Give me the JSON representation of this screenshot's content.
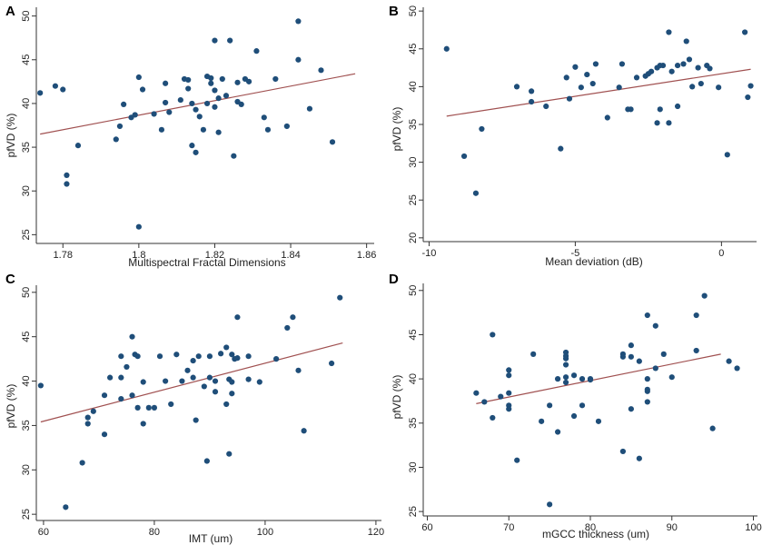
{
  "colors": {
    "point": "#1f4e79",
    "fit_line": "#a05050",
    "axis": "#333333"
  },
  "chart_data": [
    {
      "panel": "A",
      "type": "scatter",
      "xlabel": "Multispectral Fractal Dimensions",
      "ylabel": "pfVD (%)",
      "xlim": [
        1.773,
        1.862
      ],
      "ylim": [
        24,
        51
      ],
      "xticks": [
        "1.78",
        "1.8",
        "1.82",
        "1.84",
        "1.86"
      ],
      "xtick_values": [
        1.78,
        1.8,
        1.82,
        1.84,
        1.86
      ],
      "yticks": [
        "25",
        "30",
        "35",
        "40",
        "45",
        "50"
      ],
      "ytick_values": [
        25,
        30,
        35,
        40,
        45,
        50
      ],
      "fit_line": [
        [
          1.774,
          36.5
        ],
        [
          1.857,
          43.4
        ]
      ],
      "points": [
        [
          1.774,
          41.2
        ],
        [
          1.778,
          42.0
        ],
        [
          1.78,
          41.6
        ],
        [
          1.781,
          31.8
        ],
        [
          1.781,
          30.8
        ],
        [
          1.784,
          35.2
        ],
        [
          1.794,
          35.9
        ],
        [
          1.795,
          37.4
        ],
        [
          1.796,
          39.9
        ],
        [
          1.798,
          38.4
        ],
        [
          1.799,
          38.7
        ],
        [
          1.8,
          43.0
        ],
        [
          1.8,
          25.9
        ],
        [
          1.801,
          41.6
        ],
        [
          1.804,
          38.8
        ],
        [
          1.806,
          37.0
        ],
        [
          1.807,
          40.1
        ],
        [
          1.807,
          42.3
        ],
        [
          1.808,
          39.0
        ],
        [
          1.811,
          40.4
        ],
        [
          1.812,
          42.8
        ],
        [
          1.813,
          42.7
        ],
        [
          1.813,
          41.7
        ],
        [
          1.814,
          40.0
        ],
        [
          1.814,
          35.2
        ],
        [
          1.815,
          34.4
        ],
        [
          1.815,
          39.3
        ],
        [
          1.816,
          38.5
        ],
        [
          1.817,
          37.0
        ],
        [
          1.818,
          43.1
        ],
        [
          1.818,
          40.0
        ],
        [
          1.819,
          42.9
        ],
        [
          1.819,
          42.3
        ],
        [
          1.82,
          41.5
        ],
        [
          1.82,
          39.6
        ],
        [
          1.82,
          47.2
        ],
        [
          1.821,
          40.6
        ],
        [
          1.821,
          36.7
        ],
        [
          1.822,
          42.8
        ],
        [
          1.823,
          40.9
        ],
        [
          1.824,
          47.2
        ],
        [
          1.825,
          34.0
        ],
        [
          1.826,
          42.4
        ],
        [
          1.826,
          40.2
        ],
        [
          1.827,
          39.9
        ],
        [
          1.828,
          42.8
        ],
        [
          1.829,
          42.5
        ],
        [
          1.831,
          46.0
        ],
        [
          1.833,
          38.4
        ],
        [
          1.834,
          37.0
        ],
        [
          1.836,
          42.8
        ],
        [
          1.839,
          37.4
        ],
        [
          1.842,
          49.4
        ],
        [
          1.842,
          45.0
        ],
        [
          1.845,
          39.4
        ],
        [
          1.848,
          43.8
        ],
        [
          1.851,
          35.6
        ]
      ]
    },
    {
      "panel": "B",
      "type": "scatter",
      "xlabel": "Mean deviation (dB)",
      "ylabel": "pfVD (%)",
      "xlim": [
        -10.2,
        1.2
      ],
      "ylim": [
        19.5,
        50.5
      ],
      "xticks": [
        "-10",
        "-5",
        "0"
      ],
      "xtick_values": [
        -10,
        -5,
        0
      ],
      "yticks": [
        "20",
        "25",
        "30",
        "35",
        "40",
        "45",
        "50"
      ],
      "ytick_values": [
        20,
        25,
        30,
        35,
        40,
        45,
        50
      ],
      "fit_line": [
        [
          -9.4,
          36.1
        ],
        [
          1.0,
          42.3
        ]
      ],
      "points": [
        [
          -9.4,
          45.0
        ],
        [
          -8.8,
          30.8
        ],
        [
          -8.4,
          25.9
        ],
        [
          -8.2,
          34.4
        ],
        [
          -7.0,
          40.0
        ],
        [
          -6.5,
          38.0
        ],
        [
          -6.5,
          39.4
        ],
        [
          -6.0,
          37.4
        ],
        [
          -5.5,
          31.8
        ],
        [
          -5.3,
          41.2
        ],
        [
          -5.2,
          38.4
        ],
        [
          -5.0,
          42.6
        ],
        [
          -4.8,
          39.9
        ],
        [
          -4.6,
          41.6
        ],
        [
          -4.4,
          40.4
        ],
        [
          -4.3,
          43.0
        ],
        [
          -3.9,
          35.9
        ],
        [
          -3.5,
          39.9
        ],
        [
          -3.4,
          43.0
        ],
        [
          -3.2,
          37.0
        ],
        [
          -3.1,
          37.0
        ],
        [
          -2.9,
          41.2
        ],
        [
          -2.6,
          41.4
        ],
        [
          -2.5,
          41.7
        ],
        [
          -2.4,
          42.0
        ],
        [
          -2.2,
          42.5
        ],
        [
          -2.1,
          42.8
        ],
        [
          -2.0,
          42.8
        ],
        [
          -2.1,
          37.0
        ],
        [
          -2.2,
          35.2
        ],
        [
          -1.8,
          47.2
        ],
        [
          -1.8,
          35.2
        ],
        [
          -1.7,
          42.0
        ],
        [
          -1.5,
          37.4
        ],
        [
          -1.5,
          42.8
        ],
        [
          -1.3,
          43.0
        ],
        [
          -1.2,
          46.0
        ],
        [
          -1.1,
          43.6
        ],
        [
          -1.0,
          40.0
        ],
        [
          -0.8,
          42.5
        ],
        [
          -0.7,
          40.4
        ],
        [
          -0.5,
          42.8
        ],
        [
          -0.4,
          42.4
        ],
        [
          -0.1,
          39.9
        ],
        [
          0.2,
          31.0
        ],
        [
          0.8,
          47.2
        ],
        [
          0.9,
          38.6
        ],
        [
          1.0,
          40.1
        ]
      ]
    },
    {
      "panel": "C",
      "type": "scatter",
      "xlabel": "IMT (um)",
      "ylabel": "pfVD (%)",
      "xlim": [
        58.7,
        121
      ],
      "ylim": [
        24.3,
        50.8
      ],
      "xticks": [
        "60",
        "80",
        "100",
        "120"
      ],
      "xtick_values": [
        60,
        80,
        100,
        120
      ],
      "yticks": [
        "25",
        "30",
        "35",
        "40",
        "45",
        "50"
      ],
      "ytick_values": [
        25,
        30,
        35,
        40,
        45,
        50
      ],
      "fit_line": [
        [
          59.5,
          35.4
        ],
        [
          114,
          44.3
        ]
      ],
      "points": [
        [
          59.5,
          39.5
        ],
        [
          64,
          25.8
        ],
        [
          67,
          30.8
        ],
        [
          68,
          35.9
        ],
        [
          68,
          35.2
        ],
        [
          69,
          36.6
        ],
        [
          71,
          34.0
        ],
        [
          71,
          38.4
        ],
        [
          72,
          40.4
        ],
        [
          74,
          42.8
        ],
        [
          74,
          38.0
        ],
        [
          74,
          40.4
        ],
        [
          75,
          41.6
        ],
        [
          76,
          38.4
        ],
        [
          76,
          45.0
        ],
        [
          76.5,
          43.0
        ],
        [
          77,
          42.8
        ],
        [
          77,
          37.0
        ],
        [
          78,
          39.9
        ],
        [
          78,
          35.2
        ],
        [
          79,
          37.0
        ],
        [
          80,
          37.0
        ],
        [
          81,
          42.8
        ],
        [
          82,
          40.0
        ],
        [
          83,
          37.4
        ],
        [
          84,
          43.0
        ],
        [
          85,
          40.0
        ],
        [
          86,
          41.2
        ],
        [
          87,
          40.4
        ],
        [
          87,
          42.3
        ],
        [
          87.5,
          35.6
        ],
        [
          88,
          42.8
        ],
        [
          89,
          39.4
        ],
        [
          89.5,
          31.0
        ],
        [
          90,
          40.4
        ],
        [
          90,
          42.8
        ],
        [
          91,
          38.8
        ],
        [
          91,
          40.0
        ],
        [
          92,
          43.1
        ],
        [
          93,
          43.8
        ],
        [
          93,
          37.4
        ],
        [
          93.5,
          40.2
        ],
        [
          93.5,
          31.8
        ],
        [
          94,
          39.9
        ],
        [
          94,
          38.6
        ],
        [
          94,
          43.0
        ],
        [
          94.5,
          42.5
        ],
        [
          95,
          42.6
        ],
        [
          95,
          47.2
        ],
        [
          97,
          40.2
        ],
        [
          97,
          42.8
        ],
        [
          99,
          39.9
        ],
        [
          102,
          42.5
        ],
        [
          104,
          46.0
        ],
        [
          105,
          47.2
        ],
        [
          106,
          41.2
        ],
        [
          107,
          34.4
        ],
        [
          112,
          42.0
        ],
        [
          113.5,
          49.4
        ]
      ]
    },
    {
      "panel": "D",
      "type": "scatter",
      "xlabel": "mGCC thickness (um)",
      "ylabel": "pfVD (%)",
      "xlim": [
        59.5,
        100.5
      ],
      "ylim": [
        24.5,
        50.8
      ],
      "xticks": [
        "60",
        "70",
        "80",
        "90",
        "100"
      ],
      "xtick_values": [
        60,
        70,
        80,
        90,
        100
      ],
      "yticks": [
        "25",
        "30",
        "35",
        "40",
        "45",
        "50"
      ],
      "ytick_values": [
        25,
        30,
        35,
        40,
        45,
        50
      ],
      "fit_line": [
        [
          66,
          37.2
        ],
        [
          96,
          42.8
        ]
      ],
      "points": [
        [
          66,
          38.4
        ],
        [
          67,
          37.4
        ],
        [
          68,
          35.6
        ],
        [
          68,
          45.0
        ],
        [
          69,
          38.0
        ],
        [
          70,
          37.0
        ],
        [
          70,
          41.0
        ],
        [
          70,
          40.4
        ],
        [
          70,
          38.4
        ],
        [
          70,
          36.6
        ],
        [
          71,
          30.8
        ],
        [
          73,
          42.8
        ],
        [
          74,
          35.2
        ],
        [
          75,
          37.0
        ],
        [
          75,
          25.8
        ],
        [
          76,
          34.0
        ],
        [
          76,
          40.0
        ],
        [
          77,
          43.0
        ],
        [
          77,
          42.6
        ],
        [
          77,
          42.3
        ],
        [
          77,
          41.6
        ],
        [
          77,
          40.2
        ],
        [
          77,
          39.6
        ],
        [
          78,
          35.8
        ],
        [
          78,
          40.4
        ],
        [
          79,
          40.0
        ],
        [
          79,
          37.0
        ],
        [
          80,
          39.9
        ],
        [
          80,
          40.0
        ],
        [
          81,
          35.2
        ],
        [
          84,
          42.8
        ],
        [
          84,
          42.5
        ],
        [
          84,
          31.8
        ],
        [
          85,
          43.8
        ],
        [
          85,
          42.5
        ],
        [
          85,
          36.6
        ],
        [
          86,
          31.0
        ],
        [
          86,
          42.0
        ],
        [
          87,
          47.2
        ],
        [
          87,
          40.0
        ],
        [
          87,
          38.6
        ],
        [
          87,
          38.8
        ],
        [
          87,
          37.4
        ],
        [
          88,
          46.0
        ],
        [
          88,
          41.2
        ],
        [
          89,
          42.8
        ],
        [
          90,
          40.2
        ],
        [
          93,
          47.2
        ],
        [
          93,
          43.2
        ],
        [
          94,
          49.4
        ],
        [
          95,
          34.4
        ],
        [
          97,
          42.0
        ],
        [
          98,
          41.2
        ]
      ]
    }
  ]
}
